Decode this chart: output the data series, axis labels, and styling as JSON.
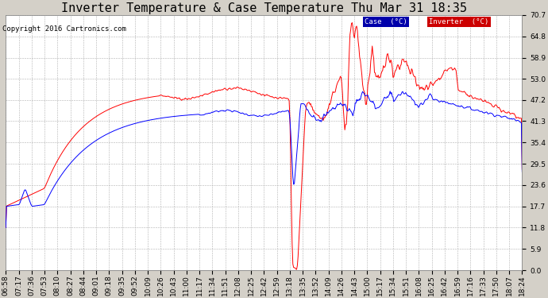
{
  "title": "Inverter Temperature & Case Temperature Thu Mar 31 18:35",
  "copyright": "Copyright 2016 Cartronics.com",
  "yticks": [
    0.0,
    5.9,
    11.8,
    17.7,
    23.6,
    29.5,
    35.4,
    41.3,
    47.2,
    53.0,
    58.9,
    64.8,
    70.7
  ],
  "ylim": [
    0.0,
    70.7
  ],
  "bg_color": "#d4d0c8",
  "plot_bg_color": "#ffffff",
  "grid_color": "#b0b0b0",
  "case_color": "#0000ff",
  "inverter_color": "#ff0000",
  "legend_case_bg": "#0000aa",
  "legend_inv_bg": "#cc0000",
  "title_fontsize": 11,
  "copyright_fontsize": 6.5,
  "tick_fontsize": 6.5,
  "xtick_labels": [
    "06:58",
    "07:17",
    "07:36",
    "07:53",
    "08:10",
    "08:27",
    "08:44",
    "09:01",
    "09:18",
    "09:35",
    "09:52",
    "10:09",
    "10:26",
    "10:43",
    "11:00",
    "11:17",
    "11:34",
    "11:51",
    "12:08",
    "12:25",
    "12:42",
    "12:59",
    "13:18",
    "13:35",
    "13:52",
    "14:09",
    "14:26",
    "14:43",
    "15:00",
    "15:17",
    "15:34",
    "15:51",
    "16:08",
    "16:25",
    "16:42",
    "16:59",
    "17:16",
    "17:33",
    "17:50",
    "18:07",
    "18:24"
  ]
}
